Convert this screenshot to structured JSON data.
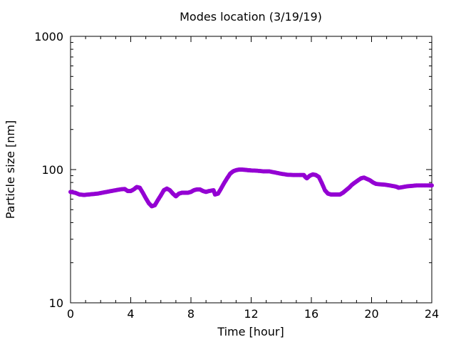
{
  "chart_data": {
    "type": "line",
    "title": "Modes location (3/19/19)",
    "xlabel": "Time [hour]",
    "ylabel": "Particle size [nm]",
    "xlim": [
      0,
      24
    ],
    "ylim": [
      10,
      1000
    ],
    "yscale": "log",
    "grid": false,
    "xticks": [
      0,
      4,
      8,
      12,
      16,
      20,
      24
    ],
    "xtick_labels": [
      "0",
      "4",
      "8",
      "12",
      "16",
      "20",
      "24"
    ],
    "yticks": [
      10,
      100,
      1000
    ],
    "ytick_labels": [
      "10",
      "100",
      "1000"
    ],
    "series_color": "#9400d3",
    "series": [
      {
        "x": [
          0,
          0.3,
          0.6,
          0.9,
          1.2,
          1.5,
          1.8,
          2.1,
          2.4,
          2.7,
          3.0,
          3.3,
          3.6,
          3.8,
          4.0,
          4.2,
          4.4,
          4.6,
          4.8,
          5.0,
          5.2,
          5.4,
          5.6,
          5.8,
          6.0,
          6.2,
          6.4,
          6.6,
          6.8,
          7.0,
          7.2,
          7.4,
          7.6,
          7.8,
          8.0,
          8.2,
          8.4,
          8.6,
          8.8,
          9.0,
          9.2,
          9.5,
          9.6,
          9.8,
          10.0,
          10.2,
          10.4,
          10.6,
          10.8,
          11.0,
          11.2,
          11.4,
          11.6,
          11.8,
          12.0,
          12.4,
          12.8,
          13.2,
          13.6,
          14.0,
          14.4,
          14.8,
          15.2,
          15.5,
          15.6,
          15.7,
          15.9,
          16.1,
          16.3,
          16.5,
          16.7,
          16.9,
          17.1,
          17.3,
          17.5,
          17.7,
          17.9,
          18.1,
          18.3,
          18.5,
          18.7,
          18.9,
          19.1,
          19.3,
          19.5,
          19.7,
          19.9,
          20.1,
          20.3,
          20.6,
          20.9,
          21.2,
          21.5,
          21.7,
          21.8,
          22.1,
          22.4,
          22.7,
          23.0,
          23.4,
          23.8,
          24.0
        ],
        "y": [
          68,
          67,
          65,
          64.5,
          65,
          65.5,
          66,
          67,
          68,
          69,
          70,
          71,
          71.5,
          69,
          69,
          71,
          74,
          73,
          67,
          61,
          56,
          53,
          54,
          59,
          64,
          70,
          72,
          70,
          66,
          63,
          66,
          67,
          67,
          67,
          68,
          70,
          71,
          71,
          69,
          68,
          69,
          70,
          65,
          66,
          72,
          79,
          86,
          93,
          97,
          99,
          100,
          100,
          99.5,
          99,
          98.5,
          98,
          97,
          97,
          95,
          93,
          91.5,
          91,
          91,
          91,
          88,
          86,
          90,
          92,
          91,
          88,
          79,
          70,
          66,
          65,
          65,
          65,
          65,
          67,
          70,
          73,
          77,
          80,
          83,
          86,
          87,
          85,
          83,
          80,
          78,
          77.5,
          77,
          76,
          75,
          74,
          73,
          74,
          75,
          75.5,
          76,
          76,
          76,
          76
        ]
      }
    ]
  }
}
